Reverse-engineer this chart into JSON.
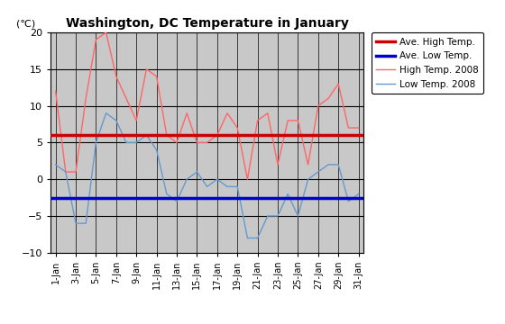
{
  "title": "Washington, DC Temperature in January",
  "ylabel": "(℃)",
  "ylim": [
    -10,
    20
  ],
  "yticks": [
    -10,
    -5,
    0,
    5,
    10,
    15,
    20
  ],
  "days": [
    1,
    2,
    3,
    4,
    5,
    6,
    7,
    8,
    9,
    10,
    11,
    12,
    13,
    14,
    15,
    16,
    17,
    18,
    19,
    20,
    21,
    22,
    23,
    24,
    25,
    26,
    27,
    28,
    29,
    30,
    31
  ],
  "ave_high": 6.0,
  "ave_low": -2.5,
  "high_2008": [
    12,
    1,
    1,
    11,
    19,
    20,
    14,
    11,
    8,
    15,
    14,
    6,
    5,
    9,
    5,
    5,
    6,
    9,
    7,
    0,
    8,
    9,
    2,
    8,
    8,
    2,
    10,
    11,
    13,
    7,
    7
  ],
  "low_2008": [
    2,
    1,
    -6,
    -6,
    5,
    9,
    8,
    5,
    5,
    6,
    4,
    -2,
    -3,
    0,
    1,
    -1,
    0,
    -1,
    -1,
    -8,
    -8,
    -5,
    -5,
    -2,
    -5,
    0,
    1,
    2,
    2,
    -3,
    -2
  ],
  "ave_high_color": "#cc0000",
  "ave_low_color": "#0000cc",
  "high_2008_color": "#ff6666",
  "low_2008_color": "#6699cc",
  "plot_bg": "#c8c8c8",
  "fig_bg": "#ffffff",
  "grid_color": "#000000",
  "legend_labels": [
    "Ave. High Temp.",
    "Ave. Low Temp.",
    "High Temp. 2008",
    "Low Temp. 2008"
  ]
}
